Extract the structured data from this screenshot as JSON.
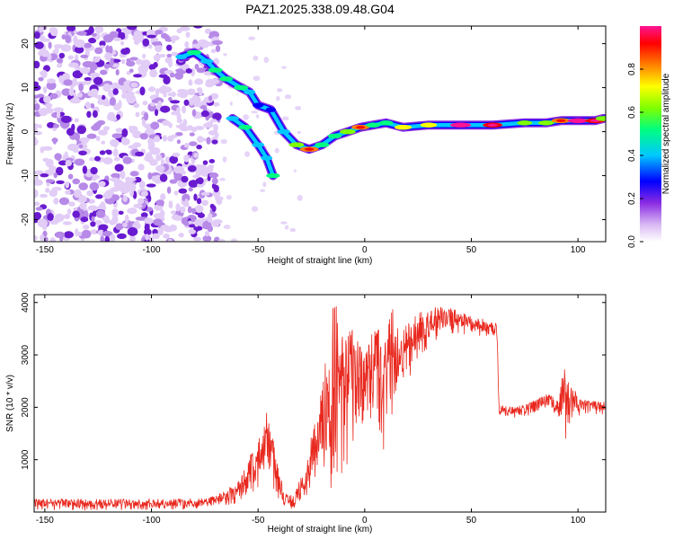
{
  "page": {
    "title": "PAZ1.2025.338.09.48.G04"
  },
  "chart_data": [
    {
      "type": "heatmap",
      "title": "PAZ1.2025.338.09.48.G04",
      "xlabel": "Height of straight line (km)",
      "ylabel": "Frequency (Hz)",
      "xlim": [
        -155,
        113
      ],
      "ylim": [
        -25,
        24
      ],
      "xticks": [
        -150,
        -100,
        -50,
        0,
        50,
        100
      ],
      "yticks": [
        -20,
        -10,
        0,
        10,
        20
      ],
      "colorbar": {
        "label": "Normalized spectral amplitude",
        "range": [
          0,
          1
        ],
        "ticks": [
          0.0,
          0.2,
          0.4,
          0.6,
          0.8
        ]
      },
      "noise_region_x": [
        -155,
        -68
      ],
      "ridge": [
        {
          "x": -86,
          "y": 17,
          "amplitude": 0.3
        },
        {
          "x": -80,
          "y": 18,
          "amplitude": 0.5
        },
        {
          "x": -74,
          "y": 16,
          "amplitude": 0.4
        },
        {
          "x": -70,
          "y": 14,
          "amplitude": 0.5
        },
        {
          "x": -65,
          "y": 12,
          "amplitude": 0.45
        },
        {
          "x": -58,
          "y": 10,
          "amplitude": 0.5
        },
        {
          "x": -54,
          "y": 9,
          "amplitude": 0.3
        },
        {
          "x": -50,
          "y": 6,
          "amplitude": 0.25
        },
        {
          "x": -44,
          "y": 5,
          "amplitude": 0.2
        },
        {
          "x": -38,
          "y": 0,
          "amplitude": 0.4
        },
        {
          "x": -32,
          "y": -3,
          "amplitude": 0.55
        },
        {
          "x": -26,
          "y": -4,
          "amplitude": 0.8
        },
        {
          "x": -20,
          "y": -3,
          "amplitude": 0.5
        },
        {
          "x": -14,
          "y": -1,
          "amplitude": 0.45
        },
        {
          "x": -8,
          "y": 0,
          "amplitude": 0.6
        },
        {
          "x": -2,
          "y": 1,
          "amplitude": 0.75
        },
        {
          "x": 4,
          "y": 1.5,
          "amplitude": 0.5
        },
        {
          "x": 10,
          "y": 2,
          "amplitude": 0.5
        },
        {
          "x": 18,
          "y": 1,
          "amplitude": 0.7
        },
        {
          "x": 30,
          "y": 1.5,
          "amplitude": 0.65
        },
        {
          "x": 45,
          "y": 1.5,
          "amplitude": 0.95
        },
        {
          "x": 60,
          "y": 1.5,
          "amplitude": 0.85
        },
        {
          "x": 75,
          "y": 2,
          "amplitude": 0.55
        },
        {
          "x": 85,
          "y": 2,
          "amplitude": 0.6
        },
        {
          "x": 92,
          "y": 2.5,
          "amplitude": 0.8
        },
        {
          "x": 100,
          "y": 2.5,
          "amplitude": 0.95
        },
        {
          "x": 108,
          "y": 2.5,
          "amplitude": 0.85
        },
        {
          "x": 112,
          "y": 3,
          "amplitude": 0.6
        }
      ],
      "branch": [
        {
          "x": -62,
          "y": 3,
          "amplitude": 0.4
        },
        {
          "x": -56,
          "y": 1,
          "amplitude": 0.45
        },
        {
          "x": -50,
          "y": -3,
          "amplitude": 0.35
        },
        {
          "x": -46,
          "y": -6,
          "amplitude": 0.3
        },
        {
          "x": -43,
          "y": -10,
          "amplitude": 0.45
        }
      ]
    },
    {
      "type": "line",
      "xlabel": "Height of straight line (km)",
      "ylabel": "SNR (10 * v/v)",
      "xlim": [
        -155,
        113
      ],
      "ylim": [
        0,
        4150
      ],
      "xticks": [
        -150,
        -100,
        -50,
        0,
        50,
        100
      ],
      "yticks": [
        1000,
        2000,
        3000,
        4000
      ],
      "color": "#e8281e",
      "envelope": [
        {
          "x": -155,
          "low": 30,
          "high": 250
        },
        {
          "x": -120,
          "low": 30,
          "high": 250
        },
        {
          "x": -80,
          "low": 50,
          "high": 250
        },
        {
          "x": -70,
          "low": 100,
          "high": 300
        },
        {
          "x": -60,
          "low": 150,
          "high": 550
        },
        {
          "x": -55,
          "low": 300,
          "high": 1000
        },
        {
          "x": -50,
          "low": 400,
          "high": 1400
        },
        {
          "x": -46,
          "low": 600,
          "high": 1900
        },
        {
          "x": -43,
          "low": 400,
          "high": 1400
        },
        {
          "x": -38,
          "low": 100,
          "high": 400
        },
        {
          "x": -33,
          "low": 50,
          "high": 300
        },
        {
          "x": -27,
          "low": 300,
          "high": 1100
        },
        {
          "x": -22,
          "low": 800,
          "high": 2000
        },
        {
          "x": -18,
          "low": 200,
          "high": 3100
        },
        {
          "x": -14,
          "low": 200,
          "high": 4150
        },
        {
          "x": -10,
          "low": 700,
          "high": 3400
        },
        {
          "x": -5,
          "low": 1300,
          "high": 3500
        },
        {
          "x": 0,
          "low": 1600,
          "high": 3000
        },
        {
          "x": 5,
          "low": 1800,
          "high": 3600
        },
        {
          "x": 10,
          "low": 900,
          "high": 3300
        },
        {
          "x": 12,
          "low": 1500,
          "high": 4000
        },
        {
          "x": 18,
          "low": 2300,
          "high": 3500
        },
        {
          "x": 25,
          "low": 2900,
          "high": 3800
        },
        {
          "x": 35,
          "low": 3300,
          "high": 3950
        },
        {
          "x": 45,
          "low": 3400,
          "high": 3850
        },
        {
          "x": 55,
          "low": 3350,
          "high": 3700
        },
        {
          "x": 62,
          "low": 3300,
          "high": 3600
        },
        {
          "x": 63,
          "low": 1850,
          "high": 2050
        },
        {
          "x": 70,
          "low": 1800,
          "high": 2000
        },
        {
          "x": 78,
          "low": 1850,
          "high": 2100
        },
        {
          "x": 85,
          "low": 2000,
          "high": 2250
        },
        {
          "x": 90,
          "low": 1850,
          "high": 2200
        },
        {
          "x": 94,
          "low": 1350,
          "high": 2850
        },
        {
          "x": 97,
          "low": 1800,
          "high": 2400
        },
        {
          "x": 102,
          "low": 1850,
          "high": 2150
        },
        {
          "x": 113,
          "low": 1850,
          "high": 2100
        }
      ]
    }
  ]
}
